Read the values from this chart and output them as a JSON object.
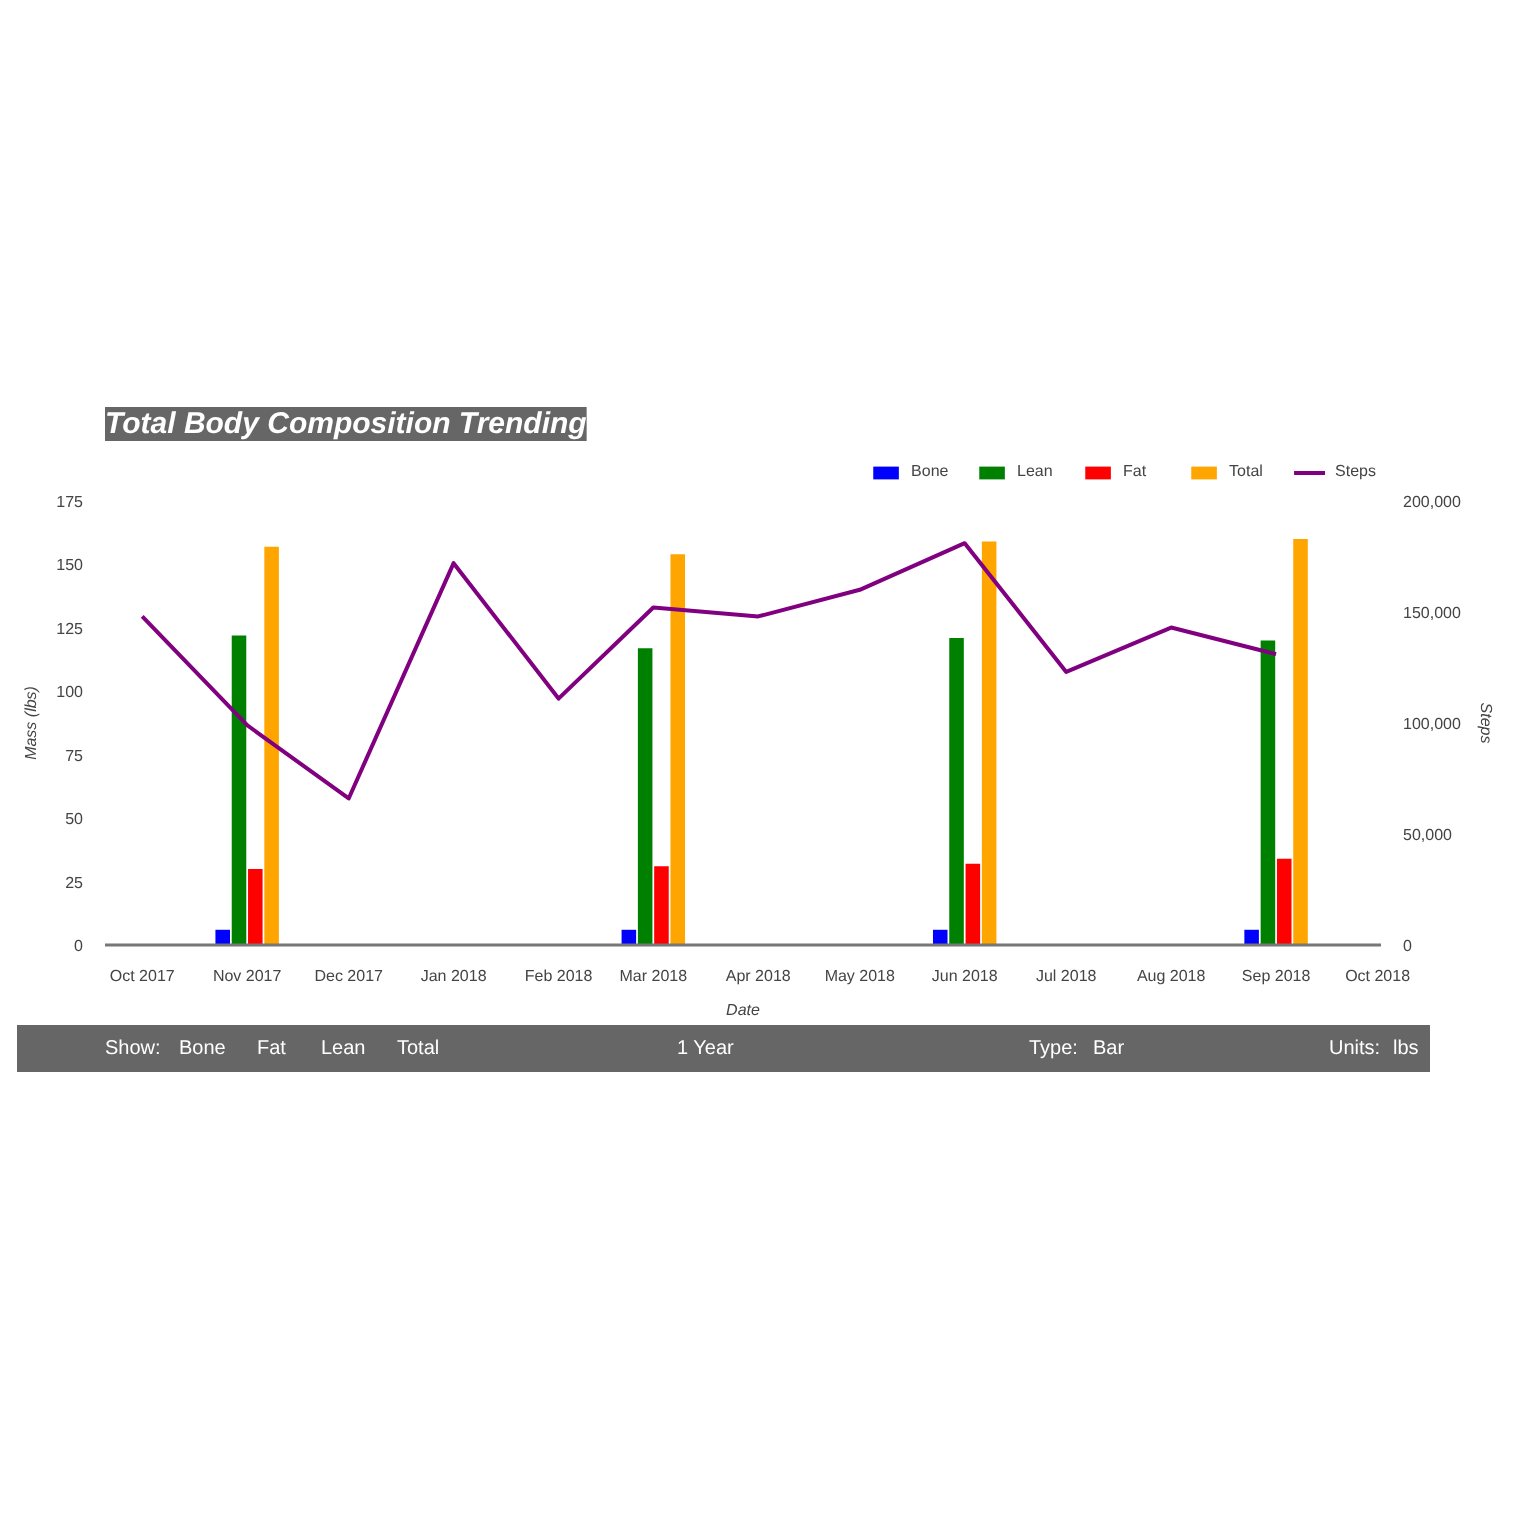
{
  "chart_data": {
    "type": "bar",
    "title": "Total Body Composition Trending",
    "xlabel": "Date",
    "ylabel": "Mass (lbs)",
    "y2label": "Steps",
    "x": [
      "2017-11",
      "2018-03",
      "2018-06",
      "2018-09"
    ],
    "series": [
      {
        "name": "Bone",
        "color": "#0000ff",
        "values": [
          6,
          6,
          6,
          6
        ]
      },
      {
        "name": "Lean",
        "color": "#008000",
        "values": [
          122,
          117,
          121,
          120
        ]
      },
      {
        "name": "Fat",
        "color": "#ff0000",
        "values": [
          30,
          31,
          32,
          34
        ]
      },
      {
        "name": "Total",
        "color": "#ffa500",
        "values": [
          157,
          154,
          159,
          160
        ]
      },
      {
        "name": "Steps",
        "color": "#800080",
        "type": "line",
        "axis": "y2",
        "x": [
          "2017-10",
          "2017-11",
          "2017-12",
          "2018-01",
          "2018-02",
          "2018-03",
          "2018-04",
          "2018-05",
          "2018-06",
          "2018-07",
          "2018-08",
          "2018-09"
        ],
        "values": [
          148000,
          99000,
          66000,
          172000,
          111000,
          152000,
          148000,
          160000,
          181000,
          123000,
          143000,
          131000
        ]
      }
    ],
    "xlim": [
      "2017-09-20",
      "2018-10-02"
    ],
    "xticks": [
      {
        "value": "2017-10",
        "label": "Oct 2017"
      },
      {
        "value": "2017-11",
        "label": "Nov 2017"
      },
      {
        "value": "2017-12",
        "label": "Dec 2017"
      },
      {
        "value": "2018-01",
        "label": "Jan 2018"
      },
      {
        "value": "2018-02",
        "label": "Feb 2018"
      },
      {
        "value": "2018-03",
        "label": "Mar 2018"
      },
      {
        "value": "2018-04",
        "label": "Apr 2018"
      },
      {
        "value": "2018-05",
        "label": "May 2018"
      },
      {
        "value": "2018-06",
        "label": "Jun 2018"
      },
      {
        "value": "2018-07",
        "label": "Jul 2018"
      },
      {
        "value": "2018-08",
        "label": "Aug 2018"
      },
      {
        "value": "2018-09",
        "label": "Sep 2018"
      },
      {
        "value": "2018-10",
        "label": "Oct 2018"
      }
    ],
    "ylim": [
      0,
      175
    ],
    "yticks": [
      0,
      25,
      50,
      75,
      100,
      125,
      150,
      175
    ],
    "y2lim": [
      0,
      200000
    ],
    "y2ticks": [
      0,
      {
        "value": 50000,
        "label": "50,000"
      },
      {
        "value": 100000,
        "label": "100,000"
      },
      {
        "value": 150000,
        "label": "150,000"
      },
      {
        "value": 200000,
        "label": "200,000"
      }
    ],
    "grid": false,
    "legend": "top right",
    "marker": "none",
    "line_style": "solid",
    "annotations": [
      "Show:",
      "Bone",
      "Fat",
      "Lean",
      "Total",
      "1 Year",
      "Type:",
      "Bar",
      "Units:",
      "lbs"
    ]
  }
}
